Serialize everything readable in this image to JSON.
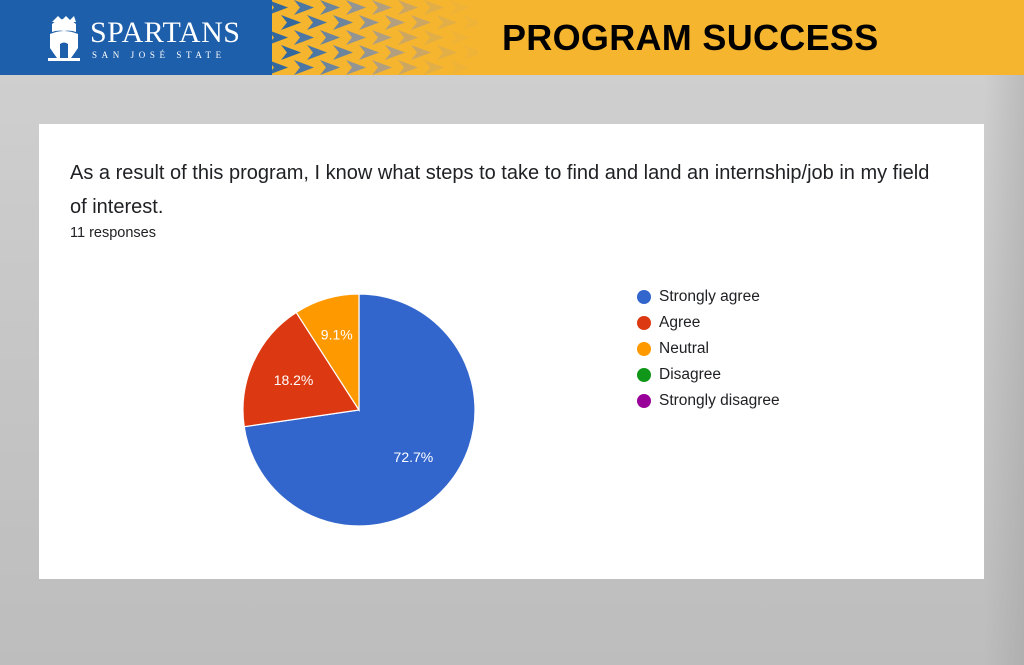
{
  "header": {
    "brand_name": "SPARTANS",
    "brand_subtitle": "SAN JOSÉ STATE",
    "title": "PROGRAM SUCCESS",
    "logo_icon": "spartan-helmet-icon",
    "colors": {
      "blue": "#1d5fab",
      "gold": "#f5b52e"
    }
  },
  "card": {
    "question_line1": "As a result of this program, I know what steps to take to find and land an internship/job in my field",
    "question_line2": "of interest.",
    "responses": "11 responses"
  },
  "chart_data": {
    "type": "pie",
    "categories": [
      "Strongly agree",
      "Agree",
      "Neutral",
      "Disagree",
      "Strongly disagree"
    ],
    "values": [
      72.7,
      18.2,
      9.1,
      0,
      0
    ],
    "slice_labels": [
      "72.7%",
      "18.2%",
      "9.1%",
      "",
      ""
    ],
    "colors": [
      "#3366cc",
      "#dc3912",
      "#ff9900",
      "#109618",
      "#990099"
    ],
    "legend_position": "right"
  }
}
